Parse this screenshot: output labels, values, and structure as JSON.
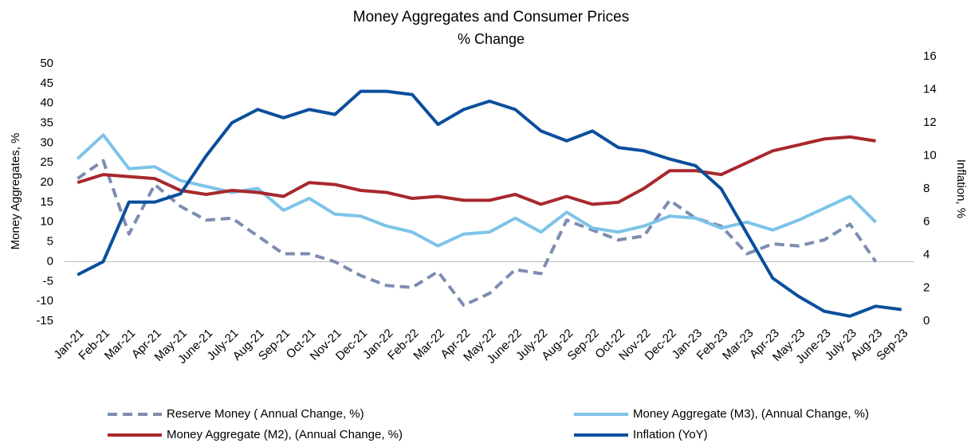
{
  "chart_data": {
    "type": "line",
    "title": "Money Aggregates and Consumer Prices",
    "subtitle": "% Change",
    "y_label": "Money Aggregates, %",
    "y2_label": "Inflation, %",
    "categories": [
      "Jan-21",
      "Feb-21",
      "Mar-21",
      "Apr-21",
      "May-21",
      "June-21",
      "July-21",
      "Aug-21",
      "Sep-21",
      "Oct-21",
      "Nov-21",
      "Dec-21",
      "Jan-22",
      "Feb-22",
      "Mar-22",
      "Apr-22",
      "May-22",
      "June-22",
      "July-22",
      "Aug-22",
      "Sep-22",
      "Oct-22",
      "Nov-22",
      "Dec-22",
      "Jan-23",
      "Feb-23",
      "Mar-23",
      "Apr-23",
      "May-23",
      "June-23",
      "July-23",
      "Aug-23",
      "Sep-23"
    ],
    "series": [
      {
        "name": "Reserve Money ( Annual Change, %)",
        "color": "#7d8db0",
        "dash": "dashed",
        "values": [
          21,
          25.5,
          7,
          19.5,
          14,
          10.5,
          11,
          6.5,
          2,
          2,
          0,
          -3.5,
          -6,
          -6.5,
          -2.5,
          -11,
          -8,
          -2,
          -3,
          10.5,
          8,
          5.5,
          6.5,
          15.5,
          11,
          9,
          2,
          4.5,
          4,
          5.5,
          9.5,
          0,
          null
        ]
      },
      {
        "name": "Money Aggregate (M3), (Annual Change, %)",
        "color": "#7dc3e8",
        "values": [
          26,
          32,
          23.5,
          24,
          20.5,
          19,
          17.5,
          18.5,
          13,
          16,
          12,
          11.5,
          9,
          7.5,
          4,
          7,
          7.5,
          11,
          7.5,
          12.5,
          8.5,
          7.5,
          9,
          11.5,
          11,
          8.5,
          10,
          8,
          10.5,
          13.5,
          16.5,
          10,
          null
        ]
      },
      {
        "name": "Money Aggregate (M2), (Annual Change, %)",
        "color": "#a8282c",
        "values": [
          20,
          22,
          21.5,
          21,
          18,
          17,
          18,
          17.5,
          16.5,
          20,
          19.5,
          18,
          17.5,
          16,
          16.5,
          15.5,
          15.5,
          17,
          14.5,
          16.5,
          14.5,
          15,
          18.5,
          23,
          23,
          22,
          25,
          28,
          29.5,
          31,
          31.5,
          30.5,
          null
        ]
      },
      {
        "name": "Inflation (YoY)",
        "color": "#0b4f9c",
        "axis": "y2",
        "values": [
          2.8,
          3.6,
          7.2,
          7.2,
          7.7,
          10,
          12,
          12.8,
          12.3,
          12.8,
          12.5,
          13.9,
          13.9,
          13.7,
          11.9,
          12.8,
          13.3,
          12.8,
          11.5,
          10.9,
          11.5,
          10.5,
          10.3,
          9.8,
          9.4,
          8,
          5.3,
          2.6,
          1.5,
          0.6,
          0.3,
          0.9,
          0.7
        ]
      }
    ],
    "ylim": [
      -15,
      50
    ],
    "yticks": [
      -15,
      -10,
      -5,
      0,
      5,
      10,
      15,
      20,
      25,
      30,
      35,
      40,
      45,
      50
    ],
    "y2lim": [
      0,
      16
    ],
    "y2ticks": [
      0,
      2,
      4,
      6,
      8,
      10,
      12,
      14,
      16
    ],
    "grid": false,
    "legend": "bottom"
  }
}
